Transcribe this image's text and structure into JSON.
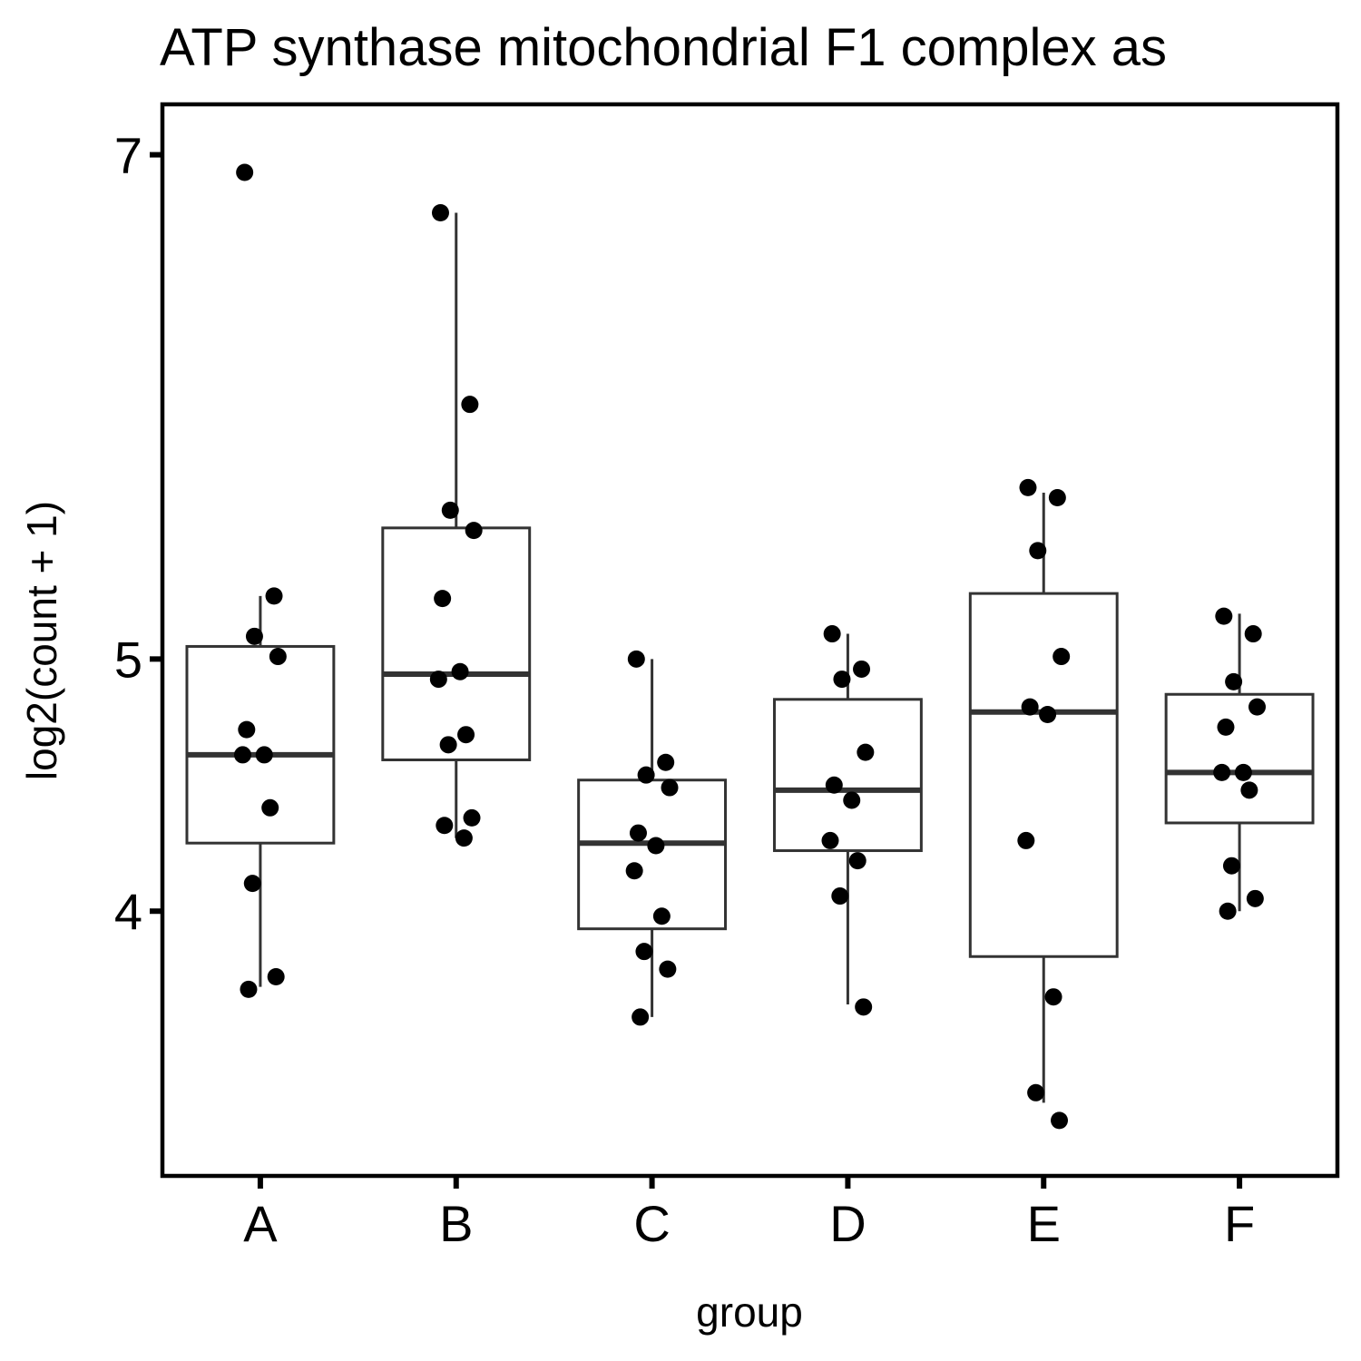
{
  "chart_data": {
    "type": "box",
    "title": "ATP synthase mitochondrial F1 complex as",
    "xlabel": "group",
    "ylabel": "log2(count + 1)",
    "y_scale": "log2(count + 1)",
    "yticks": [
      4,
      5,
      7
    ],
    "ylim": [
      2.95,
      7.2
    ],
    "categories": [
      "A",
      "B",
      "C",
      "D",
      "E",
      "F"
    ],
    "grid": false,
    "legend": "none",
    "colors": {
      "box_stroke": "#333333",
      "points": "#000000",
      "frame": "#000000",
      "background": "#ffffff"
    },
    "boxes": [
      {
        "group": "A",
        "min": 3.7,
        "q1": 4.27,
        "median": 4.62,
        "q3": 5.05,
        "max": 5.25
      },
      {
        "group": "B",
        "min": 4.29,
        "q1": 4.6,
        "median": 4.94,
        "q3": 5.52,
        "max": 6.77
      },
      {
        "group": "C",
        "min": 3.58,
        "q1": 3.93,
        "median": 4.27,
        "q3": 4.52,
        "max": 5.0
      },
      {
        "group": "D",
        "min": 3.63,
        "q1": 4.24,
        "median": 4.48,
        "q3": 4.84,
        "max": 5.1
      },
      {
        "group": "E",
        "min": 3.24,
        "q1": 3.82,
        "median": 4.79,
        "q3": 5.26,
        "max": 5.66
      },
      {
        "group": "F",
        "min": 4.0,
        "q1": 4.35,
        "median": 4.55,
        "q3": 4.86,
        "max": 5.18
      }
    ],
    "points": [
      {
        "group": "A",
        "values": [
          6.93,
          5.25,
          5.09,
          5.01,
          4.72,
          4.62,
          4.62,
          4.41,
          4.11,
          3.74,
          3.69
        ]
      },
      {
        "group": "B",
        "values": [
          6.77,
          6.01,
          5.59,
          5.51,
          5.24,
          4.95,
          4.92,
          4.7,
          4.66,
          4.37,
          4.34,
          4.29
        ]
      },
      {
        "group": "C",
        "values": [
          5.0,
          4.59,
          4.54,
          4.49,
          4.31,
          4.26,
          4.16,
          3.98,
          3.84,
          3.77,
          3.58
        ]
      },
      {
        "group": "D",
        "values": [
          5.1,
          4.96,
          4.92,
          4.63,
          4.5,
          4.44,
          4.28,
          4.2,
          4.06,
          3.62
        ]
      },
      {
        "group": "E",
        "values": [
          5.68,
          5.64,
          5.43,
          5.01,
          4.81,
          4.78,
          4.28,
          3.66,
          3.28,
          3.17
        ]
      },
      {
        "group": "F",
        "values": [
          5.17,
          5.1,
          4.91,
          4.81,
          4.73,
          4.55,
          4.55,
          4.48,
          4.18,
          4.05,
          4.0
        ]
      }
    ]
  }
}
